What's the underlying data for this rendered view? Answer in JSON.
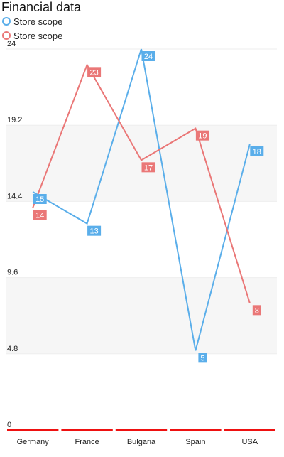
{
  "chart_data": {
    "type": "line",
    "title": "Financial data",
    "categories": [
      "Germany",
      "France",
      "Bulgaria",
      "Spain",
      "USA"
    ],
    "series": [
      {
        "name": "Store scope",
        "color": "#5aaeea",
        "values": [
          15,
          13,
          24,
          5,
          18
        ]
      },
      {
        "name": "Store scope",
        "color": "#ea7777",
        "values": [
          14,
          23,
          17,
          19,
          8
        ]
      }
    ],
    "y_ticks": [
      "0",
      "4.8",
      "9.6",
      "14.4",
      "19.2",
      "24"
    ],
    "y_tick_values": [
      0,
      4.8,
      9.6,
      14.4,
      19.2,
      24
    ],
    "ylim": [
      0,
      24
    ],
    "grid": true,
    "legend_position": "top-left",
    "data_labels": true,
    "axis_color": "#ee1111"
  }
}
